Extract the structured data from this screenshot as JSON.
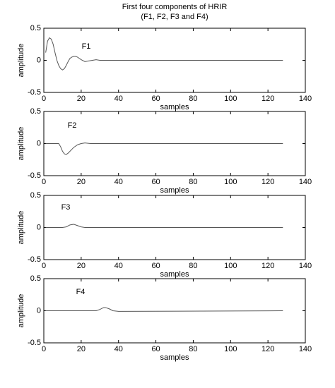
{
  "chart_data": [
    {
      "type": "line",
      "title": "First four components of HRIR",
      "subtitle": "(F1, F2, F3 and F4)",
      "annotation": "F1",
      "x": [
        1,
        2,
        3,
        4,
        5,
        6,
        7,
        8,
        9,
        10,
        11,
        12,
        13,
        14,
        15,
        16,
        17,
        18,
        19,
        20,
        22,
        24,
        26,
        28,
        30,
        35,
        40,
        50,
        60,
        70,
        80,
        90,
        100,
        110,
        120,
        128
      ],
      "values": [
        0.12,
        0.3,
        0.35,
        0.33,
        0.25,
        0.12,
        0,
        -0.08,
        -0.13,
        -0.15,
        -0.13,
        -0.08,
        -0.02,
        0.03,
        0.05,
        0.06,
        0.06,
        0.05,
        0.03,
        0.01,
        -0.02,
        -0.01,
        0,
        0.01,
        0,
        0,
        0,
        0,
        0,
        0,
        0,
        0,
        0,
        0,
        0,
        0
      ],
      "color": "#555555",
      "xlabel": "samples",
      "ylabel": "amplitude",
      "xlim": [
        0,
        140
      ],
      "xticks": [
        0,
        20,
        40,
        60,
        80,
        100,
        120,
        140
      ],
      "ylim": [
        -0.5,
        0.5
      ],
      "yticks": [
        -0.5,
        0,
        0.5
      ]
    },
    {
      "type": "line",
      "annotation": "F2",
      "x": [
        1,
        8,
        9,
        10,
        11,
        12,
        13,
        14,
        15,
        16,
        17,
        18,
        19,
        20,
        22,
        25,
        30,
        128
      ],
      "values": [
        0,
        0,
        -0.05,
        -0.12,
        -0.16,
        -0.17,
        -0.15,
        -0.12,
        -0.09,
        -0.06,
        -0.04,
        -0.02,
        -0.01,
        0,
        0.01,
        0,
        0,
        0
      ],
      "color": "#555555",
      "xlabel": "samples",
      "ylabel": "amplitude",
      "xlim": [
        0,
        140
      ],
      "xticks": [
        0,
        20,
        40,
        60,
        80,
        100,
        120,
        140
      ],
      "ylim": [
        -0.5,
        0.5
      ],
      "yticks": [
        -0.5,
        0,
        0.5
      ]
    },
    {
      "type": "line",
      "annotation": "F3",
      "x": [
        1,
        10,
        12,
        14,
        16,
        18,
        20,
        22,
        25,
        128
      ],
      "values": [
        0,
        0,
        0.01,
        0.04,
        0.05,
        0.03,
        0.01,
        0,
        0,
        0
      ],
      "color": "#555555",
      "xlabel": "samples",
      "ylabel": "amplitude",
      "xlim": [
        0,
        140
      ],
      "xticks": [
        0,
        20,
        40,
        60,
        80,
        100,
        120,
        140
      ],
      "ylim": [
        -0.5,
        0.5
      ],
      "yticks": [
        -0.5,
        0,
        0.5
      ]
    },
    {
      "type": "line",
      "annotation": "F4",
      "x": [
        1,
        28,
        30,
        32,
        33,
        35,
        37,
        40,
        128
      ],
      "values": [
        0,
        0,
        0.02,
        0.05,
        0.05,
        0.03,
        0,
        -0.01,
        0
      ],
      "color": "#555555",
      "xlabel": "samples",
      "ylabel": "amplitude",
      "xlim": [
        0,
        140
      ],
      "xticks": [
        0,
        20,
        40,
        60,
        80,
        100,
        120,
        140
      ],
      "ylim": [
        -0.5,
        0.5
      ],
      "yticks": [
        -0.5,
        0,
        0.5
      ]
    }
  ]
}
